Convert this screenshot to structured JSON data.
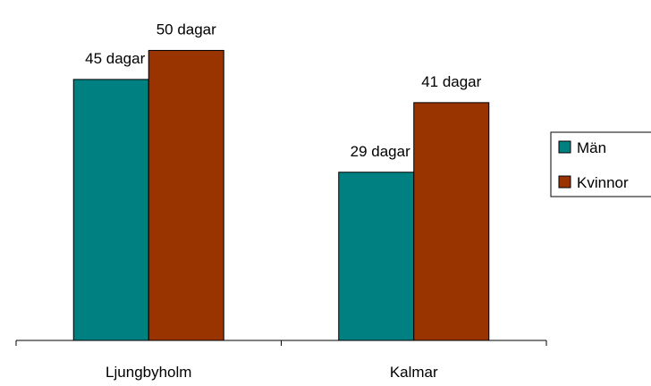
{
  "chart_data": {
    "type": "bar",
    "categories": [
      "Ljungbyholm",
      "Kalmar"
    ],
    "series": [
      {
        "name": "Män",
        "values": [
          45,
          29
        ],
        "labels": [
          "45 dagar",
          "29 dagar"
        ],
        "color": "#008080"
      },
      {
        "name": "Kvinnor",
        "values": [
          50,
          41
        ],
        "labels": [
          "50 dagar",
          "41 dagar"
        ],
        "color": "#993300"
      }
    ],
    "title": "",
    "xlabel": "",
    "ylabel": "",
    "ylim": [
      0,
      57
    ],
    "grid": false,
    "legend_position": "right"
  }
}
